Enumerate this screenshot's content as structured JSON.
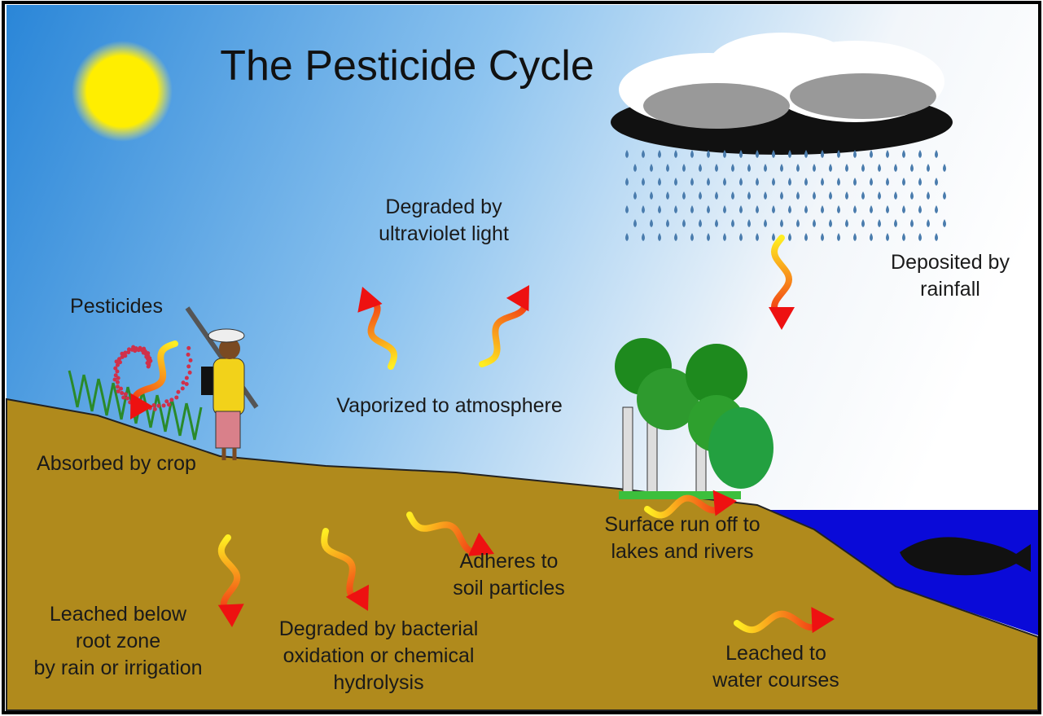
{
  "title": "The Pesticide Cycle",
  "labels": [
    {
      "lines": [
        "Degraded by",
        "ultraviolet light"
      ]
    },
    {
      "lines": [
        "Deposited by",
        "rainfall"
      ]
    },
    {
      "lines": [
        "Pesticides"
      ]
    },
    {
      "lines": [
        "Vaporized to atmosphere"
      ]
    },
    {
      "lines": [
        "Absorbed by crop"
      ]
    },
    {
      "lines": [
        "Surface run off to",
        "lakes and rivers"
      ]
    },
    {
      "lines": [
        "Adheres to",
        "soil particles"
      ]
    },
    {
      "lines": [
        "Leached below",
        "root zone",
        "by rain or irrigation"
      ]
    },
    {
      "lines": [
        "Degraded by bacterial",
        "oxidation or chemical",
        "hydrolysis"
      ]
    },
    {
      "lines": [
        "Leached to",
        "water courses"
      ]
    }
  ]
}
